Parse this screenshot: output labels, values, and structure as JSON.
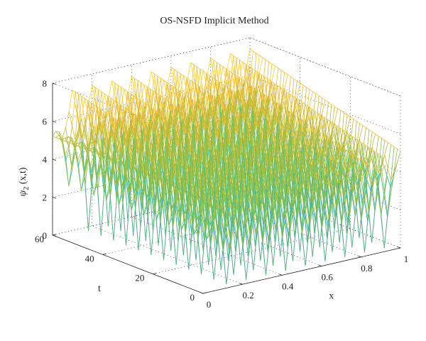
{
  "chart_data": {
    "type": "surface-mesh-3d",
    "title": "OS-NSFD Implicit Method",
    "xlabel": "x",
    "ylabel": "t",
    "zlabel_main": "ψ",
    "zlabel_sub": "2",
    "zlabel_suffix": " (x,t)",
    "xlim": [
      0,
      1
    ],
    "ylim": [
      0,
      60
    ],
    "zlim": [
      0,
      8
    ],
    "x_ticks": [
      "0",
      "0.2",
      "0.4",
      "0.6",
      "0.8",
      "1"
    ],
    "y_ticks": [
      "0",
      "20",
      "40",
      "60"
    ],
    "z_ticks": [
      "0",
      "2",
      "4",
      "6",
      "8"
    ],
    "x_tick_values": [
      0,
      0.2,
      0.4,
      0.6,
      0.8,
      1
    ],
    "y_tick_values": [
      0,
      20,
      40,
      60
    ],
    "z_tick_values": [
      0,
      2,
      4,
      6,
      8
    ],
    "grid": true,
    "colormap": "parula",
    "colormap_colors": [
      "#3e26a8",
      "#4361f5",
      "#2d96e2",
      "#13b2c0",
      "#2ebf8f",
      "#8bc34a",
      "#d4b72c",
      "#fdbf2f",
      "#f9e51a"
    ],
    "peak_t_values": [
      0,
      5,
      10,
      15,
      20,
      25,
      30,
      35,
      40,
      45,
      50,
      55,
      60
    ],
    "ridge_x_values": [
      0,
      0.1,
      0.2,
      0.3,
      0.4,
      0.5,
      0.6,
      0.7,
      0.8,
      0.9,
      1.0
    ],
    "value_at_x0": 5.2,
    "ridge_value_t60_x1": 7.4,
    "ridge_value_t0_x1": 5.1,
    "min_value": 0
  }
}
